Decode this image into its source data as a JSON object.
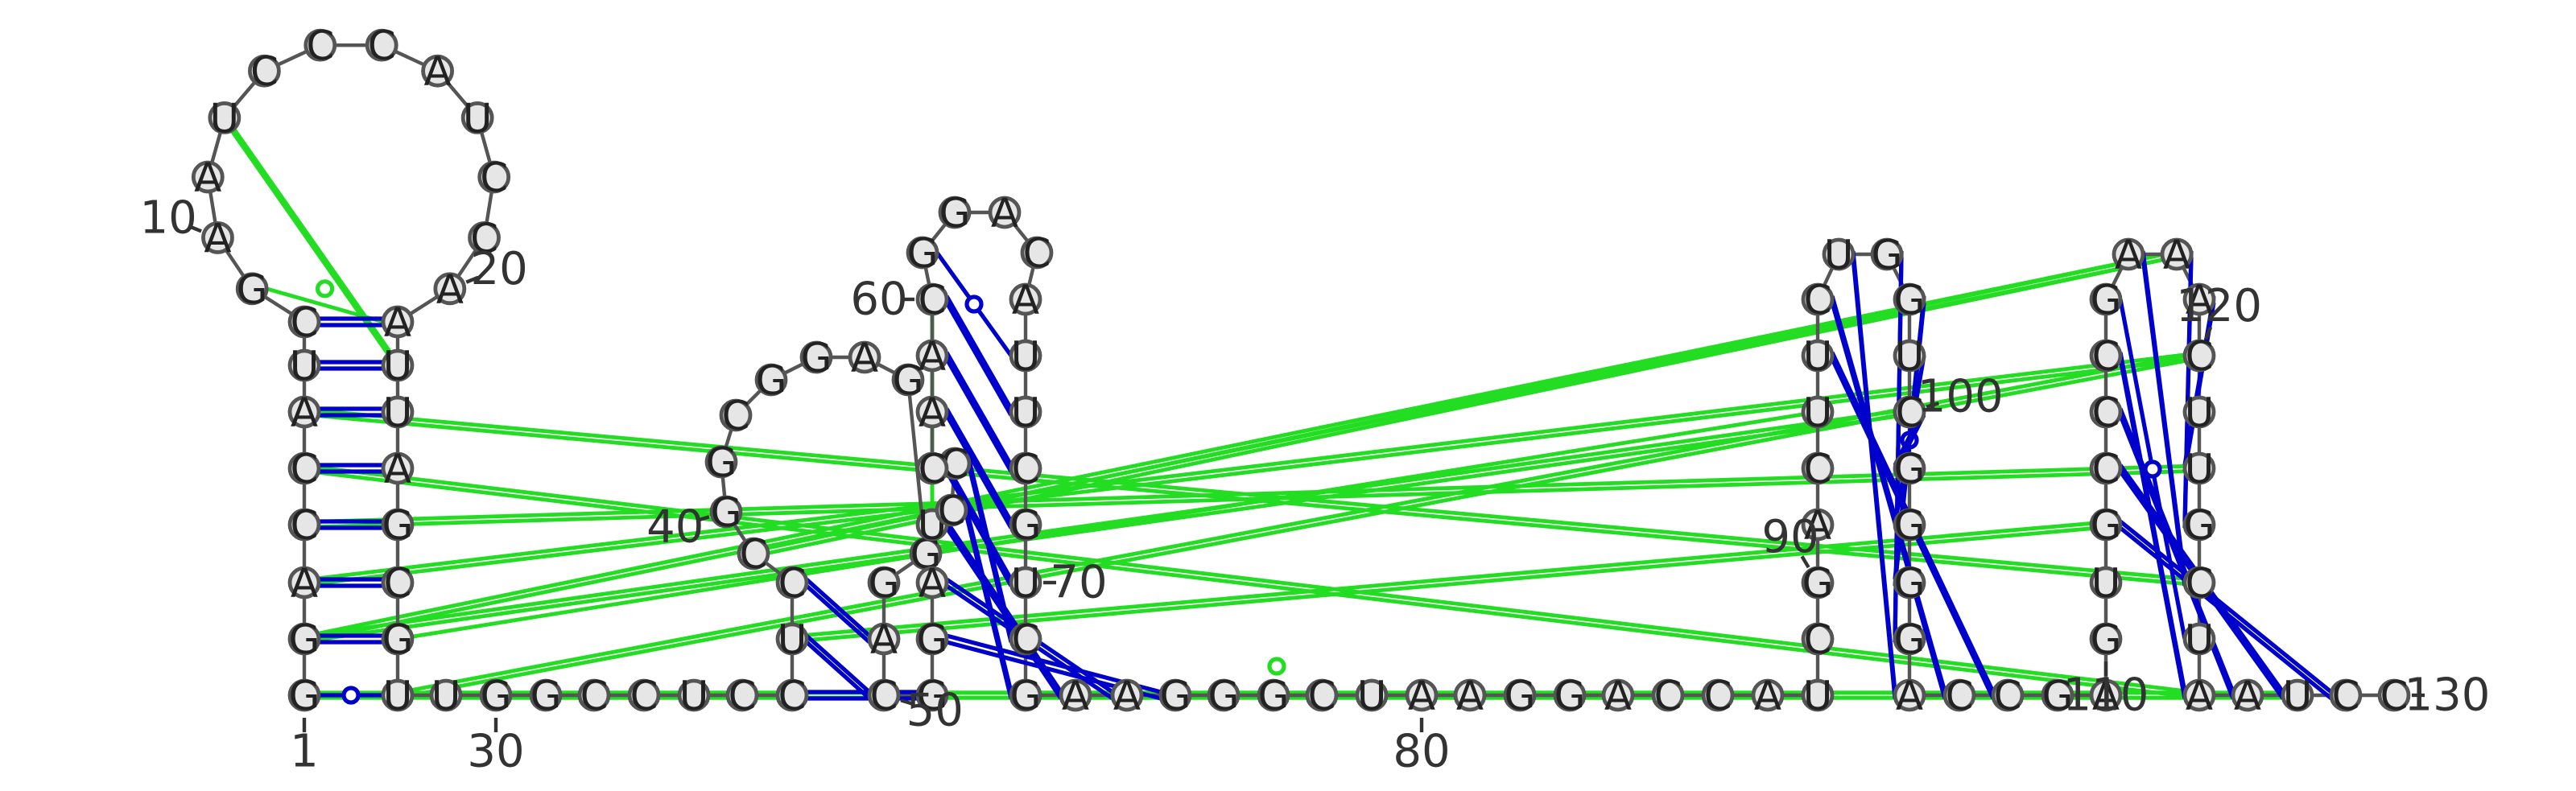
{
  "sequence": "GGACCAUCGAAUCCCAUCCAAUUAGCGUUGGCCUCCUCCGGCGGAGGGACGGAUCCCAACGGACAUUCGUCGAAGGGCUAAGGACCAUCGACUUCUGGUCGGGGACCGAGUGCCCGAAACUUGCUAAUCC",
  "position_labels": [
    {
      "index": 1,
      "text": "1"
    },
    {
      "index": 10,
      "text": "10"
    },
    {
      "index": 20,
      "text": "20"
    },
    {
      "index": 30,
      "text": "30"
    },
    {
      "index": 40,
      "text": "40"
    },
    {
      "index": 50,
      "text": "50"
    },
    {
      "index": 60,
      "text": "60"
    },
    {
      "index": 70,
      "text": "70"
    },
    {
      "index": 80,
      "text": "80"
    },
    {
      "index": 90,
      "text": "90"
    },
    {
      "index": 100,
      "text": "100"
    },
    {
      "index": 110,
      "text": "110"
    },
    {
      "index": 120,
      "text": "120"
    },
    {
      "index": 130,
      "text": "130"
    }
  ],
  "colors": {
    "canonical_pair": "#0000cc",
    "noncanonical_interaction": "#22dd22",
    "nucleotide_fill": "#e6e6e6",
    "backbone": "#555555"
  }
}
